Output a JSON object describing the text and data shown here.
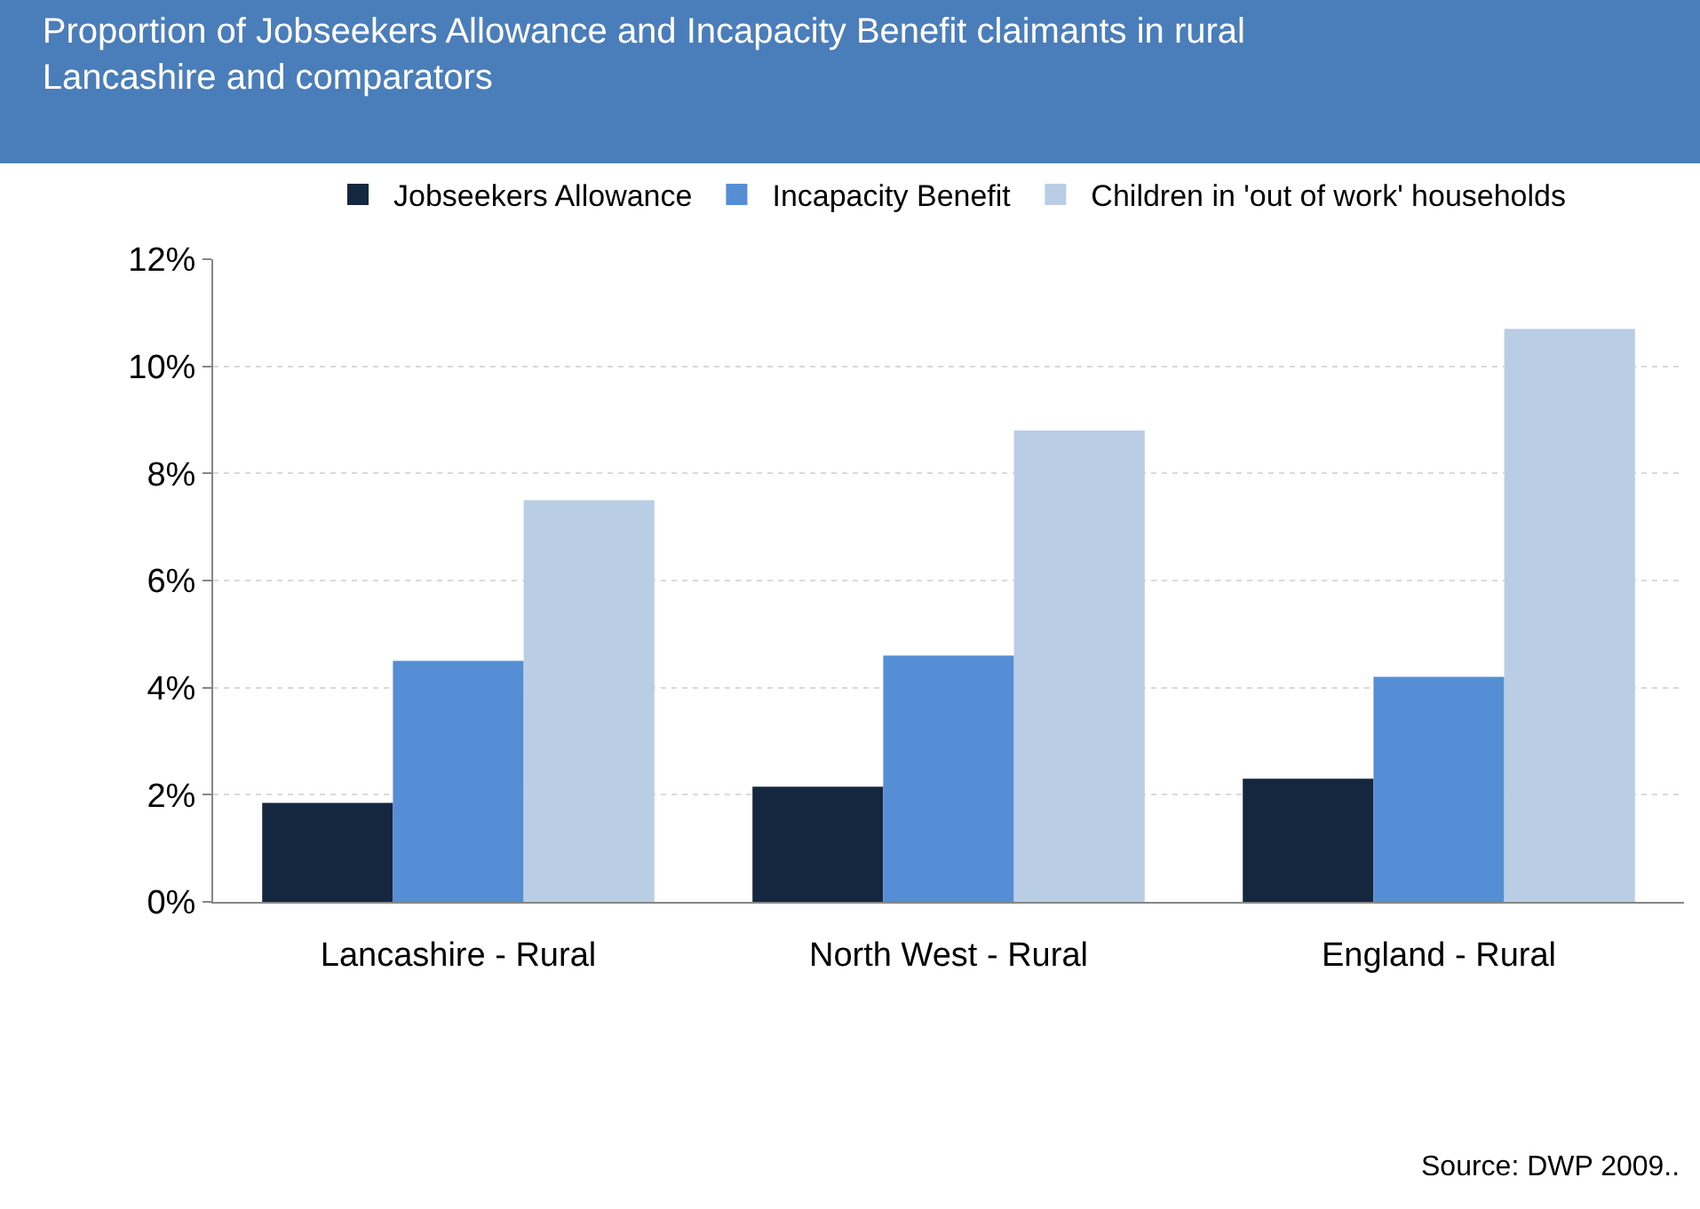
{
  "chart_data": {
    "type": "bar",
    "title": "Proportion of Jobseekers Allowance and Incapacity Benefit claimants in rural Lancashire and comparators",
    "categories": [
      "Lancashire - Rural",
      "North West - Rural",
      "England - Rural"
    ],
    "series": [
      {
        "name": "Jobseekers Allowance",
        "color": "#14273f",
        "values": [
          1.85,
          2.15,
          2.3
        ]
      },
      {
        "name": "Incapacity Benefit",
        "color": "#558ed5",
        "values": [
          4.5,
          4.6,
          4.2
        ]
      },
      {
        "name": "Children in 'out of work' households",
        "color": "#b9cde5",
        "values": [
          7.5,
          8.8,
          10.7
        ]
      }
    ],
    "ylim": [
      0,
      12
    ],
    "yticks": [
      {
        "value": 0,
        "label": "0%"
      },
      {
        "value": 2,
        "label": "2%"
      },
      {
        "value": 4,
        "label": "4%"
      },
      {
        "value": 6,
        "label": "6%"
      },
      {
        "value": 8,
        "label": "8%"
      },
      {
        "value": 10,
        "label": "10%"
      },
      {
        "value": 12,
        "label": "12%"
      }
    ],
    "grid": "y",
    "legend": "top",
    "annotations": [
      "Source: DWP 2009.."
    ]
  }
}
